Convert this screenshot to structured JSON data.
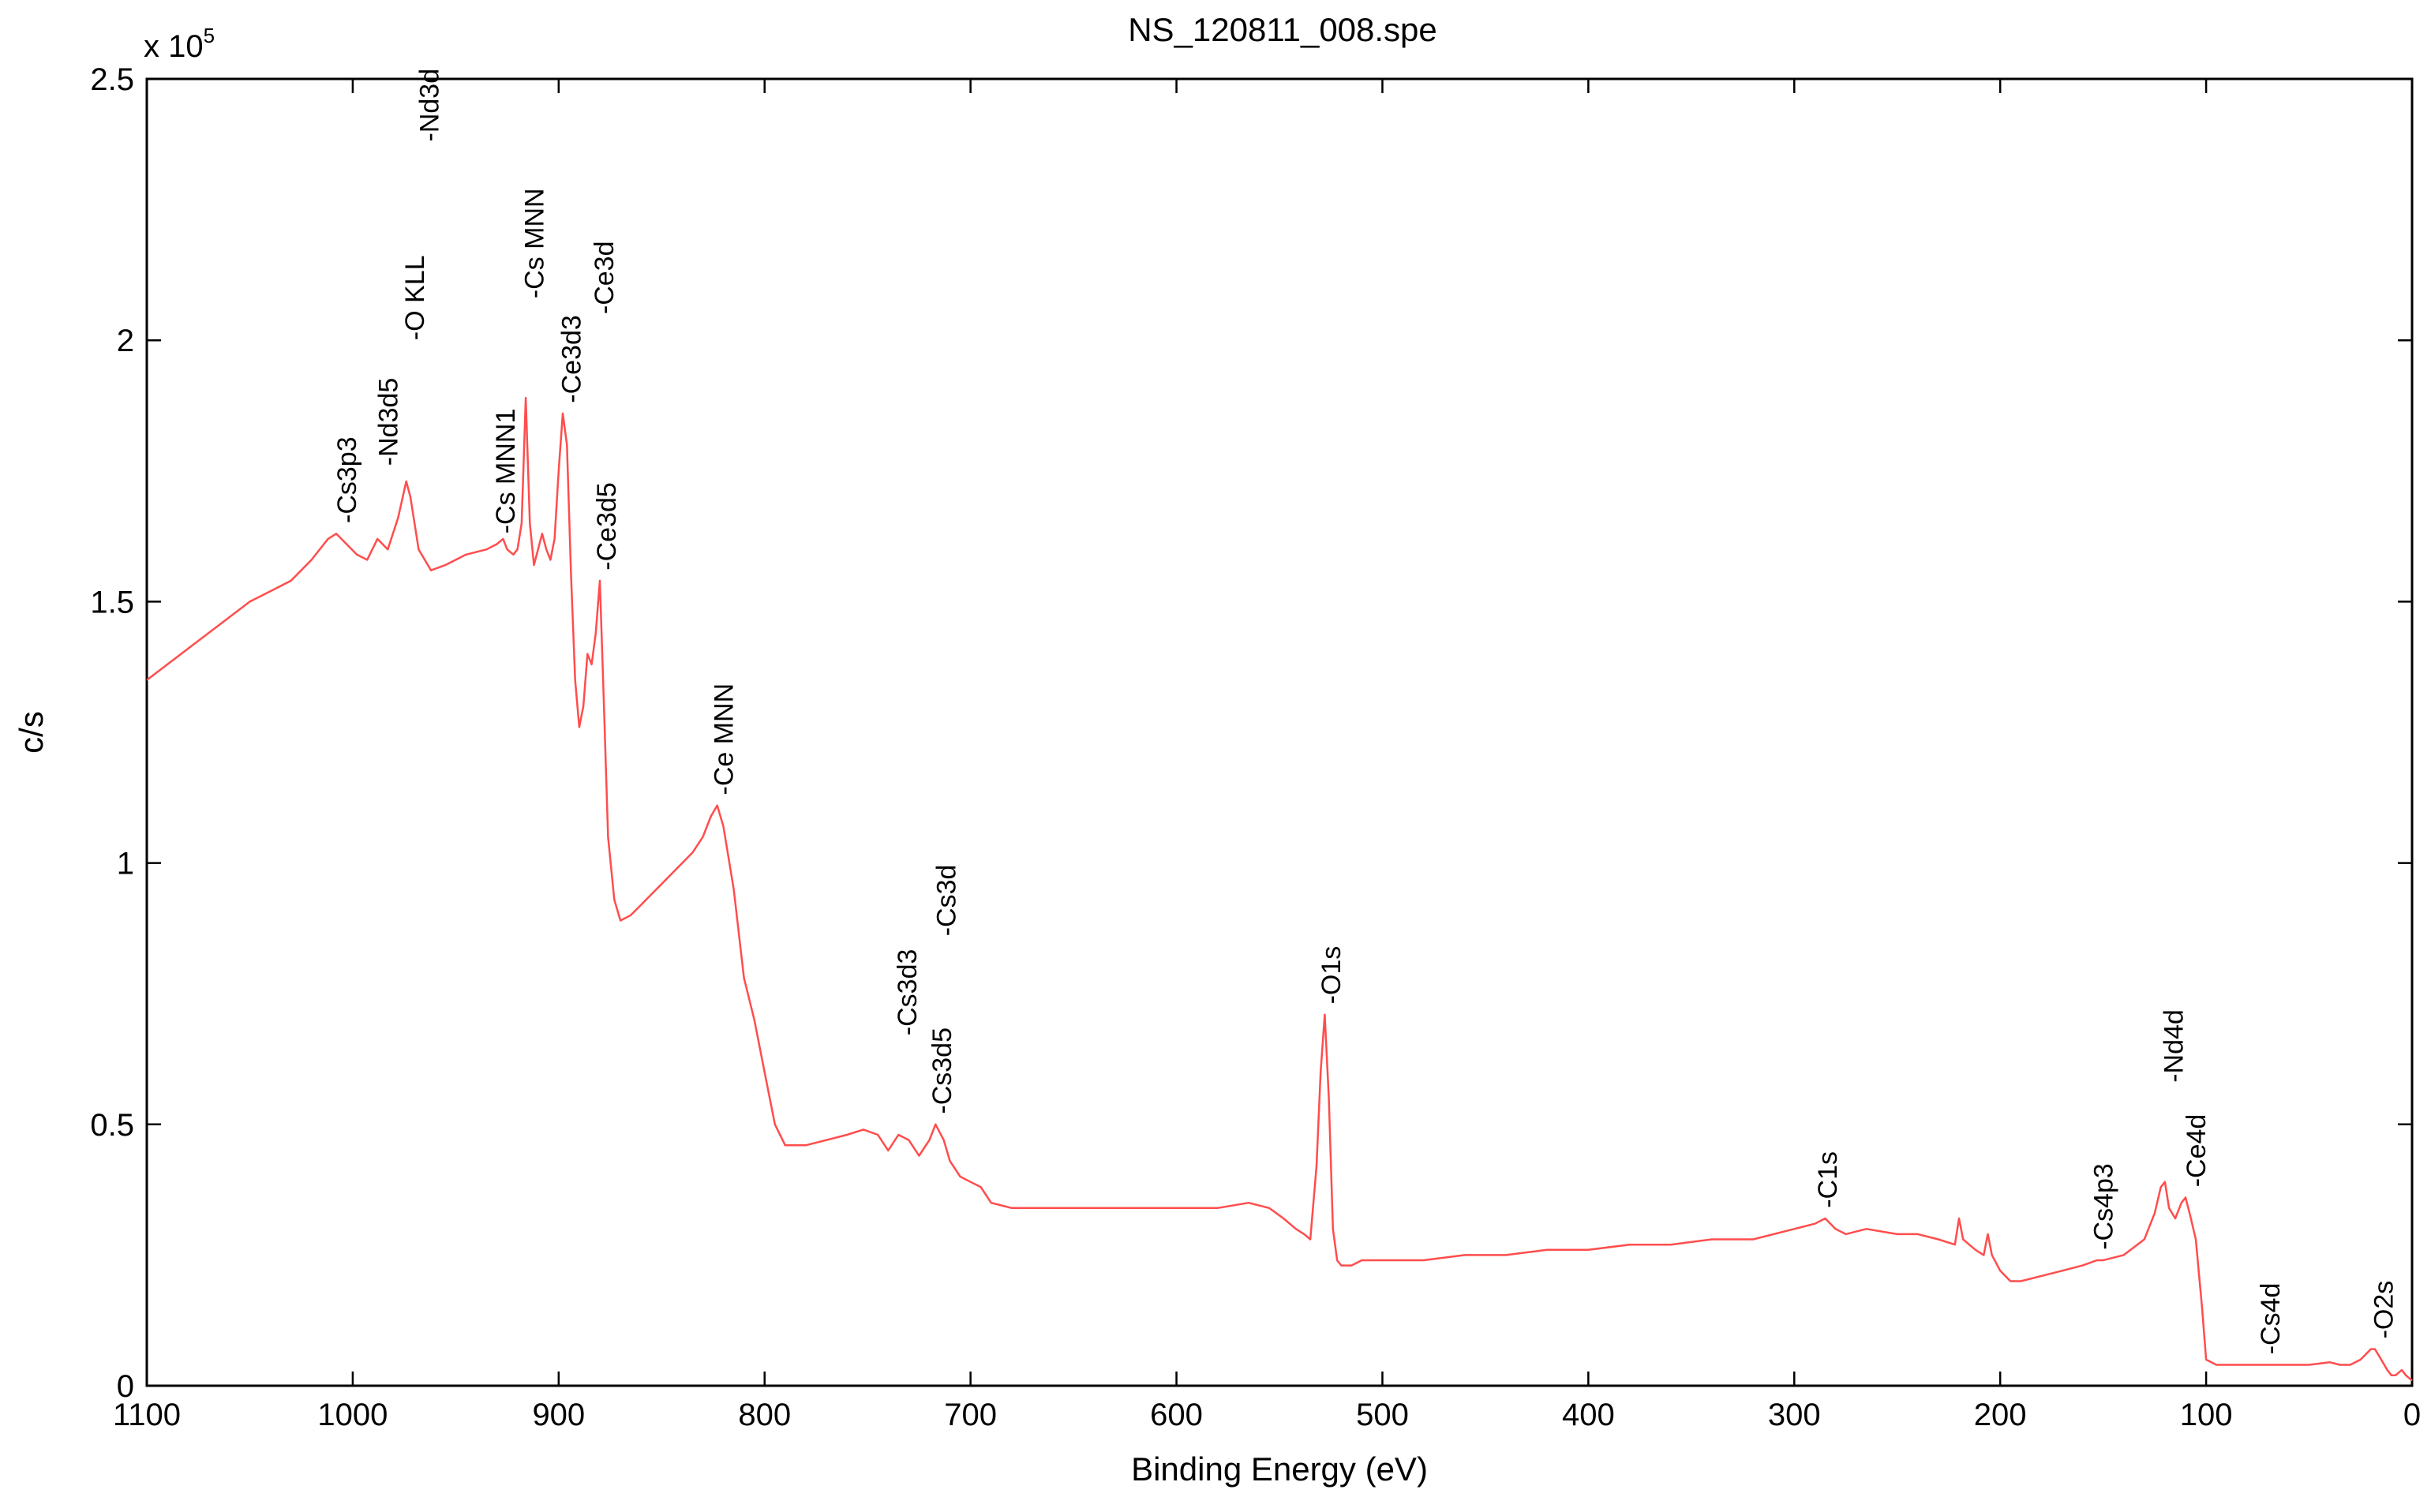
{
  "chart_data": {
    "type": "line",
    "title": "NS_120811_008.spe",
    "xlabel": "Binding Energy (eV)",
    "ylabel": "c/s",
    "y_multiplier_label": {
      "base": "x 10",
      "exponent": "5"
    },
    "xlim": [
      1100,
      0
    ],
    "x_reversed": true,
    "ylim": [
      0,
      2.5
    ],
    "x_ticks": [
      1100,
      1000,
      900,
      800,
      700,
      600,
      500,
      400,
      300,
      200,
      100,
      0
    ],
    "x_tick_labels": [
      "1100",
      "1000",
      "900",
      "800",
      "700",
      "600",
      "500",
      "400",
      "300",
      "200",
      "100",
      "0"
    ],
    "y_ticks": [
      0,
      0.5,
      1,
      1.5,
      2,
      2.5
    ],
    "y_tick_labels": [
      "0",
      "0.5",
      "1",
      "1.5",
      "2",
      "2.5"
    ],
    "grid": false,
    "line_color": "#ff4d4d",
    "series": [
      {
        "x": [
          1100,
          1090,
          1080,
          1070,
          1060,
          1050,
          1040,
          1030,
          1020,
          1012,
          1008,
          1003,
          998,
          993,
          988,
          983,
          978,
          974,
          972,
          968,
          962,
          955,
          945,
          935,
          930,
          927,
          925,
          922,
          920,
          918,
          916,
          914,
          912,
          910,
          908,
          906,
          904,
          902,
          900,
          898,
          896,
          894,
          892,
          890,
          888,
          886,
          884,
          882,
          880,
          878,
          876,
          873,
          870,
          865,
          860,
          850,
          840,
          835,
          830,
          826,
          823,
          820,
          815,
          810,
          805,
          800,
          795,
          790,
          780,
          770,
          760,
          752,
          745,
          740,
          735,
          730,
          725,
          720,
          717,
          713,
          710,
          705,
          700,
          695,
          690,
          680,
          660,
          640,
          620,
          600,
          580,
          565,
          555,
          548,
          542,
          538,
          535,
          532,
          530,
          528,
          526,
          524,
          522,
          520,
          515,
          510,
          500,
          480,
          460,
          440,
          420,
          400,
          380,
          360,
          340,
          320,
          300,
          290,
          285,
          280,
          275,
          265,
          250,
          240,
          230,
          222,
          220,
          218,
          215,
          212,
          208,
          206,
          204,
          200,
          195,
          190,
          180,
          170,
          160,
          153,
          150,
          140,
          130,
          125,
          122,
          120,
          118,
          115,
          112,
          110,
          108,
          105,
          102,
          100,
          95,
          90,
          80,
          70,
          60,
          50,
          40,
          35,
          30,
          25,
          20,
          18,
          15,
          12,
          10,
          8,
          5,
          3,
          0
        ],
        "y": [
          1.35,
          1.38,
          1.41,
          1.44,
          1.47,
          1.5,
          1.52,
          1.54,
          1.58,
          1.62,
          1.63,
          1.61,
          1.59,
          1.58,
          1.62,
          1.6,
          1.66,
          1.73,
          1.7,
          1.6,
          1.56,
          1.57,
          1.59,
          1.6,
          1.61,
          1.62,
          1.6,
          1.59,
          1.6,
          1.65,
          1.89,
          1.65,
          1.57,
          1.6,
          1.63,
          1.6,
          1.58,
          1.62,
          1.75,
          1.86,
          1.8,
          1.55,
          1.35,
          1.26,
          1.3,
          1.4,
          1.38,
          1.44,
          1.54,
          1.3,
          1.05,
          0.93,
          0.89,
          0.9,
          0.92,
          0.96,
          1.0,
          1.02,
          1.05,
          1.09,
          1.11,
          1.07,
          0.95,
          0.78,
          0.7,
          0.6,
          0.5,
          0.46,
          0.46,
          0.47,
          0.48,
          0.49,
          0.48,
          0.45,
          0.48,
          0.47,
          0.44,
          0.47,
          0.5,
          0.47,
          0.43,
          0.4,
          0.39,
          0.38,
          0.35,
          0.34,
          0.34,
          0.34,
          0.34,
          0.34,
          0.34,
          0.35,
          0.34,
          0.32,
          0.3,
          0.29,
          0.28,
          0.42,
          0.6,
          0.71,
          0.55,
          0.3,
          0.24,
          0.23,
          0.23,
          0.24,
          0.24,
          0.24,
          0.25,
          0.25,
          0.26,
          0.26,
          0.27,
          0.27,
          0.28,
          0.28,
          0.3,
          0.31,
          0.32,
          0.3,
          0.29,
          0.3,
          0.29,
          0.29,
          0.28,
          0.27,
          0.32,
          0.28,
          0.27,
          0.26,
          0.25,
          0.29,
          0.25,
          0.22,
          0.2,
          0.2,
          0.21,
          0.22,
          0.23,
          0.24,
          0.24,
          0.25,
          0.28,
          0.33,
          0.38,
          0.39,
          0.34,
          0.32,
          0.35,
          0.36,
          0.33,
          0.28,
          0.15,
          0.05,
          0.04,
          0.04,
          0.04,
          0.04,
          0.04,
          0.04,
          0.045,
          0.04,
          0.04,
          0.05,
          0.07,
          0.07,
          0.05,
          0.03,
          0.02,
          0.02,
          0.03,
          0.02,
          0.01
        ]
      }
    ],
    "annotations": [
      {
        "text": "-Cs3p3",
        "x": 1003,
        "y": 1.65
      },
      {
        "text": "-Nd3d5",
        "x": 983,
        "y": 1.76
      },
      {
        "text": "-O KLL",
        "x": 970,
        "y": 2.0
      },
      {
        "text": "-Nd3d",
        "x": 963,
        "y": 2.38
      },
      {
        "text": "-Cs MNN1",
        "x": 926,
        "y": 1.63
      },
      {
        "text": "-Cs MNN",
        "x": 912,
        "y": 2.08
      },
      {
        "text": "-Ce3d3",
        "x": 894,
        "y": 1.88
      },
      {
        "text": "-Ce3d",
        "x": 878,
        "y": 2.05
      },
      {
        "text": "-Ce3d5",
        "x": 877,
        "y": 1.56
      },
      {
        "text": "-Ce MNN",
        "x": 820,
        "y": 1.13
      },
      {
        "text": "-Cs3d3",
        "x": 731,
        "y": 0.67
      },
      {
        "text": "-Cs3d",
        "x": 712,
        "y": 0.86
      },
      {
        "text": "-Cs3d5",
        "x": 714,
        "y": 0.52
      },
      {
        "text": "-O1s",
        "x": 525,
        "y": 0.73
      },
      {
        "text": "-C1s",
        "x": 284,
        "y": 0.34
      },
      {
        "text": "-Cs4p3",
        "x": 150,
        "y": 0.26
      },
      {
        "text": "-Nd4d",
        "x": 116,
        "y": 0.58
      },
      {
        "text": "-Ce4d",
        "x": 105,
        "y": 0.38
      },
      {
        "text": "-Cs4d",
        "x": 69,
        "y": 0.06
      },
      {
        "text": "-O2s",
        "x": 14,
        "y": 0.09
      }
    ]
  }
}
